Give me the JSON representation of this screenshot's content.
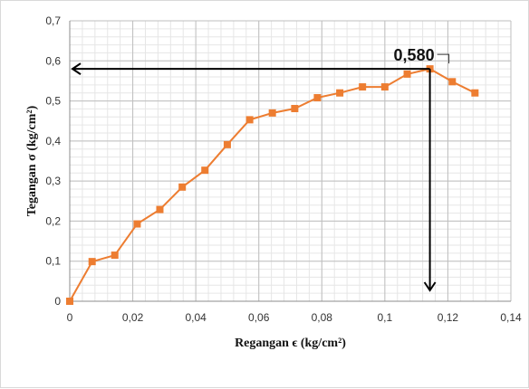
{
  "chart_data": {
    "type": "line",
    "xlabel": "Regangan ϵ (kg/cm²)",
    "ylabel": "Tegangan σ (kg/cm²)",
    "xlim": [
      0,
      0.14
    ],
    "ylim": [
      0,
      0.7
    ],
    "x_ticks": [
      0,
      0.02,
      0.04,
      0.06,
      0.08,
      0.1,
      0.12,
      0.14
    ],
    "x_tick_labels": [
      "0",
      "0,02",
      "0,04",
      "0,06",
      "0,08",
      "0,1",
      "0,12",
      "0,14"
    ],
    "y_ticks": [
      0,
      0.1,
      0.2,
      0.3,
      0.4,
      0.5,
      0.6,
      0.7
    ],
    "y_tick_labels": [
      "0",
      "0,1",
      "0,2",
      "0,3",
      "0,4",
      "0,5",
      "0,6",
      "0,7"
    ],
    "grid": true,
    "series": [
      {
        "color": "#ED7D31",
        "marker": "square",
        "x": [
          0,
          0.0071,
          0.0143,
          0.0214,
          0.0286,
          0.0357,
          0.0429,
          0.05,
          0.0571,
          0.0643,
          0.0714,
          0.0786,
          0.0857,
          0.0929,
          0.1,
          0.1071,
          0.1143,
          0.1214,
          0.1286
        ],
        "y": [
          0,
          0.099,
          0.115,
          0.193,
          0.229,
          0.285,
          0.327,
          0.391,
          0.453,
          0.47,
          0.481,
          0.508,
          0.52,
          0.535,
          0.535,
          0.567,
          0.58,
          0.548,
          0.52
        ]
      }
    ],
    "annotation": {
      "text": "0,580",
      "x": 0.1143,
      "y": 0.58
    }
  }
}
